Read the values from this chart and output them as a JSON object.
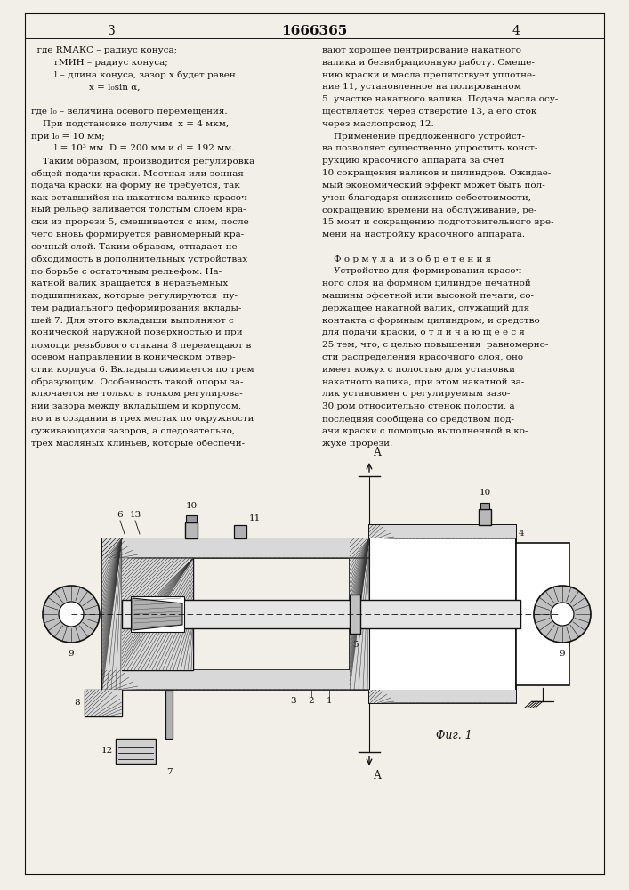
{
  "page_bg": "#f2efe8",
  "text_color": "#111111",
  "line_color": "#111111",
  "page_number_left": "3",
  "page_number_center": "1666365",
  "page_number_right": "4",
  "left_col": [
    "  где RМАКС – радиус конуса;",
    "        rМИН – радиус конуса;",
    "        l – длина конуса, зазор x будет равен",
    "                    x = l₀sin α,",
    "",
    "где l₀ – величина осевого перемещения.",
    "    При подстановке получим  x = 4 мкм,",
    "при l₀ = 10 мм;",
    "        l = 10³ мм  D = 200 мм и d = 192 мм.",
    "    Таким образом, производится регулировка",
    "общей подачи краски. Местная или зонная",
    "подача краски на форму не требуется, так",
    "как оставшийся на накатном валике красоч-",
    "ный рельеф заливается толстым слоем кра-",
    "ски из прорези 5, смешивается с ним, после",
    "чего вновь формируется равномерный кра-",
    "сочный слой. Таким образом, отпадает не-",
    "обходимость в дополнительных устройствах",
    "по борьбе с остаточным рельефом. На-",
    "катной валик вращается в неразъемных",
    "подшипниках, которые регулируются  пу-",
    "тем радиального деформирования вклады-",
    "шей 7. Для этого вкладыши выполняют с",
    "конической наружной поверхностью и при",
    "помощи резьбового стакана 8 перемещают в",
    "осевом направлении в коническом отвер-",
    "стии корпуса 6. Вкладыш сжимается по трем",
    "образующим. Особенность такой опоры за-",
    "ключается не только в тонком регулирова-",
    "нии зазора между вкладышем и корпусом,",
    "но и в создании в трех местах по окружности",
    "суживающихся зазоров, а следовательно,",
    "трех масляных клиньев, которые обеспечи-"
  ],
  "right_col": [
    "вают хорошее центрирование накатного",
    "валика и безвибрационную работу. Смеше-",
    "нию краски и масла препятствует уплотне-",
    "ние 11, установленное на полированном",
    "5  участке накатного валика. Подача масла осу-",
    "ществляется через отверстие 13, а его сток",
    "через маслопровод 12.",
    "    Применение предложенного устройст-",
    "ва позволяет существенно упростить конст-",
    "рукцию красочного аппарата за счет",
    "10 сокращения валиков и цилиндров. Ожидае-",
    "мый экономический эффект может быть пол-",
    "учен благодаря снижению себестоимости,",
    "сокращению времени на обслуживание, ре-",
    "15 монт и сокращению подготовительного вре-",
    "мени на настройку красочного аппарата.",
    "",
    "    Ф о р м у л а  и з о б р е т е н и я",
    "    Устройство для формирования красоч-",
    "ного слоя на формном цилиндре печатной",
    "машины офсетной или высокой печати, со-",
    "держащее накатной валик, служащий для",
    "контакта с формным цилиндром, и средство",
    "для подачи краски, о т л и ч а ю щ е е с я",
    "25 тем, что, с целью повышения  равномерно-",
    "сти распределения красочного слоя, оно",
    "имеет кожух с полостью для установки",
    "накатного валика, при этом накатной ва-",
    "лик установмен с регулируемым зазо-",
    "30 ром относительно стенок полости, а",
    "последняя сообщена со средством под-",
    "ачи краски с помощью выполненной в ко-",
    "жухе прорези."
  ]
}
